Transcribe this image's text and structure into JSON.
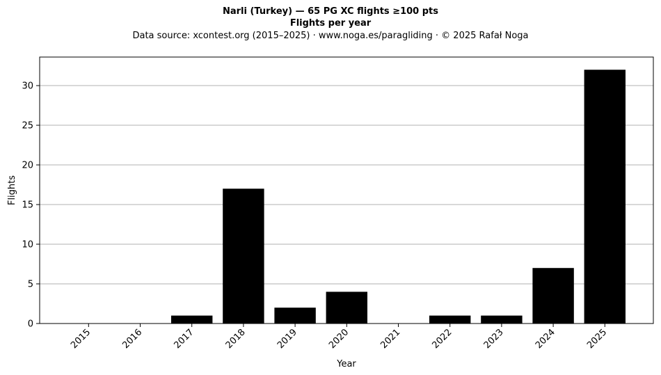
{
  "chart_data": {
    "type": "bar",
    "title": "Narli (Turkey)  —  65 PG XC flights ≥100 pts",
    "subtitle": "Flights per year",
    "caption": "Data source: xcontest.org (2015–2025)  ·  www.noga.es/paragliding  ·  © 2025 Rafał Noga",
    "xlabel": "Year",
    "ylabel": "Flights",
    "categories": [
      "2015",
      "2016",
      "2017",
      "2018",
      "2019",
      "2020",
      "2021",
      "2022",
      "2023",
      "2024",
      "2025"
    ],
    "values": [
      0,
      0,
      1,
      17,
      2,
      4,
      0,
      1,
      1,
      7,
      32
    ],
    "ylim": [
      0,
      33.6
    ],
    "yticks": [
      0,
      5,
      10,
      15,
      20,
      25,
      30
    ],
    "grid": "horizontal",
    "bar_color": "#000000",
    "grid_color": "#b0b0b0"
  }
}
